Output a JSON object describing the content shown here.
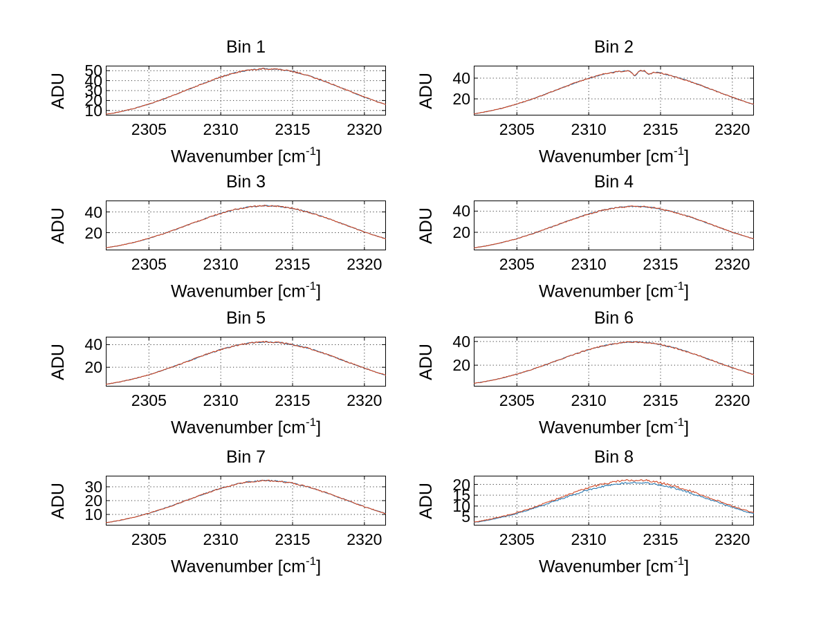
{
  "figure": {
    "background": "#ffffff",
    "axis_color": "#000000",
    "grid_color": "#000000",
    "ylabel": "ADU",
    "xlabel_prefix": "Wavenumber [cm",
    "xlabel_sup": "-1",
    "xlabel_suffix": "]",
    "series_colors": {
      "primary_red": "#cf4522",
      "secondary_blue": "#2878b0"
    }
  },
  "chart_data": [
    {
      "type": "line",
      "title": "Bin 1",
      "xlabel": "Wavenumber [cm⁻¹]",
      "ylabel": "ADU",
      "xlim": [
        2302,
        2321.5
      ],
      "ylim": [
        5,
        55
      ],
      "xticks": [
        2305,
        2310,
        2315,
        2320
      ],
      "yticks": [
        10,
        20,
        30,
        40,
        50
      ],
      "grid": "dotted",
      "legend": "none",
      "x": [
        2302,
        2303,
        2304,
        2305,
        2306,
        2307,
        2308,
        2309,
        2310,
        2311,
        2312,
        2313,
        2314,
        2315,
        2316,
        2317,
        2318,
        2319,
        2320,
        2321,
        2321.5
      ],
      "series": [
        {
          "name": "overlapped-trace-blue",
          "color": "#2878b0",
          "noise": 0.55
        },
        {
          "name": "main-trace-red",
          "color": "#cf4522",
          "noise": 0.7,
          "y": [
            6.1,
            8.7,
            12.2,
            16.4,
            21.4,
            26.9,
            32.7,
            38.4,
            43.6,
            47.9,
            50.7,
            52.0,
            51.4,
            49.2,
            45.5,
            40.6,
            35.0,
            29.2,
            23.5,
            18.3,
            16.0
          ]
        }
      ]
    },
    {
      "type": "line",
      "title": "Bin 2",
      "xlabel": "Wavenumber [cm⁻¹]",
      "ylabel": "ADU",
      "xlim": [
        2302,
        2321.5
      ],
      "ylim": [
        4,
        52
      ],
      "xticks": [
        2305,
        2310,
        2315,
        2320
      ],
      "yticks": [
        20,
        40
      ],
      "grid": "dotted",
      "legend": "none",
      "x": [
        2302,
        2303,
        2304,
        2305,
        2306,
        2307,
        2308,
        2309,
        2310,
        2311,
        2312,
        2313,
        2314,
        2315,
        2316,
        2317,
        2318,
        2319,
        2320,
        2321,
        2321.5
      ],
      "spikes": [
        {
          "x": 2313.2,
          "depth": 5.5
        },
        {
          "x": 2314.2,
          "depth": 3.0
        }
      ],
      "series": [
        {
          "name": "overlapped-trace-blue",
          "color": "#2878b0",
          "noise": 0.5
        },
        {
          "name": "main-trace-red",
          "color": "#cf4522",
          "noise": 0.65,
          "y": [
            5.5,
            8.0,
            11.1,
            15.0,
            19.5,
            24.6,
            29.9,
            35.1,
            39.9,
            43.7,
            46.3,
            47.5,
            47.0,
            44.9,
            41.5,
            37.1,
            32.0,
            26.7,
            21.5,
            16.7,
            14.6
          ]
        }
      ]
    },
    {
      "type": "line",
      "title": "Bin 3",
      "xlabel": "Wavenumber [cm⁻¹]",
      "ylabel": "ADU",
      "xlim": [
        2302,
        2321.5
      ],
      "ylim": [
        3,
        51
      ],
      "xticks": [
        2305,
        2310,
        2315,
        2320
      ],
      "yticks": [
        20,
        40
      ],
      "grid": "dotted",
      "legend": "none",
      "x": [
        2302,
        2303,
        2304,
        2305,
        2306,
        2307,
        2308,
        2309,
        2310,
        2311,
        2312,
        2313,
        2314,
        2315,
        2316,
        2317,
        2318,
        2319,
        2320,
        2321,
        2321.5
      ],
      "series": [
        {
          "name": "overlapped-trace-blue",
          "color": "#2878b0",
          "noise": 0.5
        },
        {
          "name": "main-trace-red",
          "color": "#cf4522",
          "noise": 0.65,
          "y": [
            5.4,
            7.7,
            10.8,
            14.5,
            18.9,
            23.8,
            28.9,
            34.0,
            38.6,
            42.3,
            44.9,
            46.0,
            45.5,
            43.5,
            40.2,
            35.9,
            31.0,
            25.8,
            20.8,
            16.2,
            14.1
          ]
        }
      ]
    },
    {
      "type": "line",
      "title": "Bin 4",
      "xlabel": "Wavenumber [cm⁻¹]",
      "ylabel": "ADU",
      "xlim": [
        2302,
        2321.5
      ],
      "ylim": [
        3,
        50
      ],
      "xticks": [
        2305,
        2310,
        2315,
        2320
      ],
      "yticks": [
        20,
        40
      ],
      "grid": "dotted",
      "legend": "none",
      "x": [
        2302,
        2303,
        2304,
        2305,
        2306,
        2307,
        2308,
        2309,
        2310,
        2311,
        2312,
        2313,
        2314,
        2315,
        2316,
        2317,
        2318,
        2319,
        2320,
        2321,
        2321.5
      ],
      "series": [
        {
          "name": "overlapped-trace-blue",
          "color": "#2878b0",
          "noise": 0.5
        },
        {
          "name": "main-trace-red",
          "color": "#cf4522",
          "noise": 0.65,
          "y": [
            5.2,
            7.5,
            10.4,
            14.0,
            18.3,
            23.0,
            28.0,
            32.9,
            37.3,
            41.0,
            43.4,
            44.5,
            44.0,
            42.1,
            38.9,
            34.7,
            30.0,
            25.0,
            20.1,
            15.7,
            13.7
          ]
        }
      ]
    },
    {
      "type": "line",
      "title": "Bin 5",
      "xlabel": "Wavenumber [cm⁻¹]",
      "ylabel": "ADU",
      "xlim": [
        2302,
        2321.5
      ],
      "ylim": [
        3,
        47
      ],
      "xticks": [
        2305,
        2310,
        2315,
        2320
      ],
      "yticks": [
        20,
        40
      ],
      "grid": "dotted",
      "legend": "none",
      "x": [
        2302,
        2303,
        2304,
        2305,
        2306,
        2307,
        2308,
        2309,
        2310,
        2311,
        2312,
        2313,
        2314,
        2315,
        2316,
        2317,
        2318,
        2319,
        2320,
        2321,
        2321.5
      ],
      "series": [
        {
          "name": "overlapped-trace-blue",
          "color": "#2878b0",
          "noise": 0.5
        },
        {
          "name": "main-trace-red",
          "color": "#cf4522",
          "noise": 0.65,
          "y": [
            4.9,
            7.1,
            10.0,
            13.4,
            17.5,
            22.0,
            26.7,
            31.4,
            35.7,
            39.1,
            41.5,
            42.5,
            42.0,
            40.2,
            37.2,
            33.2,
            28.6,
            23.9,
            19.2,
            15.0,
            13.0
          ]
        }
      ]
    },
    {
      "type": "line",
      "title": "Bin 6",
      "xlabel": "Wavenumber [cm⁻¹]",
      "ylabel": "ADU",
      "xlim": [
        2302,
        2321.5
      ],
      "ylim": [
        2,
        44
      ],
      "xticks": [
        2305,
        2310,
        2315,
        2320
      ],
      "yticks": [
        20,
        40
      ],
      "grid": "dotted",
      "legend": "none",
      "x": [
        2302,
        2303,
        2304,
        2305,
        2306,
        2307,
        2308,
        2309,
        2310,
        2311,
        2312,
        2313,
        2314,
        2315,
        2316,
        2317,
        2318,
        2319,
        2320,
        2321,
        2321.5
      ],
      "series": [
        {
          "name": "overlapped-trace-blue",
          "color": "#2878b0",
          "noise": 0.5
        },
        {
          "name": "main-trace-red",
          "color": "#cf4522",
          "noise": 0.6,
          "y": [
            4.6,
            6.6,
            9.3,
            12.5,
            16.2,
            20.4,
            24.8,
            29.2,
            33.1,
            36.4,
            38.5,
            39.5,
            39.1,
            37.4,
            34.5,
            30.8,
            26.6,
            22.2,
            17.9,
            13.9,
            12.1
          ]
        }
      ]
    },
    {
      "type": "line",
      "title": "Bin 7",
      "xlabel": "Wavenumber [cm⁻¹]",
      "ylabel": "ADU",
      "xlim": [
        2302,
        2321.5
      ],
      "ylim": [
        2,
        38
      ],
      "xticks": [
        2305,
        2310,
        2315,
        2320
      ],
      "yticks": [
        10,
        20,
        30
      ],
      "grid": "dotted",
      "legend": "none",
      "x": [
        2302,
        2303,
        2304,
        2305,
        2306,
        2307,
        2308,
        2309,
        2310,
        2311,
        2312,
        2313,
        2314,
        2315,
        2316,
        2317,
        2318,
        2319,
        2320,
        2321,
        2321.5
      ],
      "series": [
        {
          "name": "overlapped-trace-blue",
          "color": "#2878b0",
          "noise": 0.45
        },
        {
          "name": "main-trace-red",
          "color": "#cf4522",
          "noise": 0.55,
          "y": [
            4.0,
            5.8,
            8.1,
            10.9,
            14.2,
            17.8,
            21.7,
            25.5,
            28.9,
            31.8,
            33.7,
            34.5,
            34.1,
            32.6,
            30.2,
            26.9,
            23.2,
            19.4,
            15.6,
            12.2,
            10.6
          ]
        }
      ]
    },
    {
      "type": "line",
      "title": "Bin 8",
      "xlabel": "Wavenumber [cm⁻¹]",
      "ylabel": "ADU",
      "xlim": [
        2302,
        2321.5
      ],
      "ylim": [
        1,
        24
      ],
      "xticks": [
        2305,
        2310,
        2315,
        2320
      ],
      "yticks": [
        5,
        10,
        15,
        20
      ],
      "grid": "dotted",
      "legend": "none",
      "x": [
        2302,
        2303,
        2304,
        2305,
        2306,
        2307,
        2308,
        2309,
        2310,
        2311,
        2312,
        2313,
        2314,
        2315,
        2316,
        2317,
        2318,
        2319,
        2320,
        2321,
        2321.5
      ],
      "series": [
        {
          "name": "lower-trace-blue",
          "color": "#2878b0",
          "noise": 0.4,
          "y": [
            2.4,
            3.5,
            4.9,
            6.6,
            8.6,
            10.8,
            13.1,
            15.4,
            17.5,
            19.1,
            20.3,
            20.8,
            20.6,
            19.7,
            18.2,
            16.2,
            14.0,
            11.7,
            9.4,
            7.3,
            6.4
          ]
        },
        {
          "name": "main-trace-red",
          "color": "#cf4522",
          "noise": 0.45,
          "y": [
            2.6,
            3.7,
            5.2,
            6.9,
            9.0,
            11.4,
            13.8,
            16.3,
            18.5,
            20.2,
            21.5,
            22.0,
            21.8,
            20.8,
            19.2,
            17.2,
            14.8,
            12.4,
            10.0,
            7.8,
            6.8
          ]
        }
      ]
    }
  ]
}
